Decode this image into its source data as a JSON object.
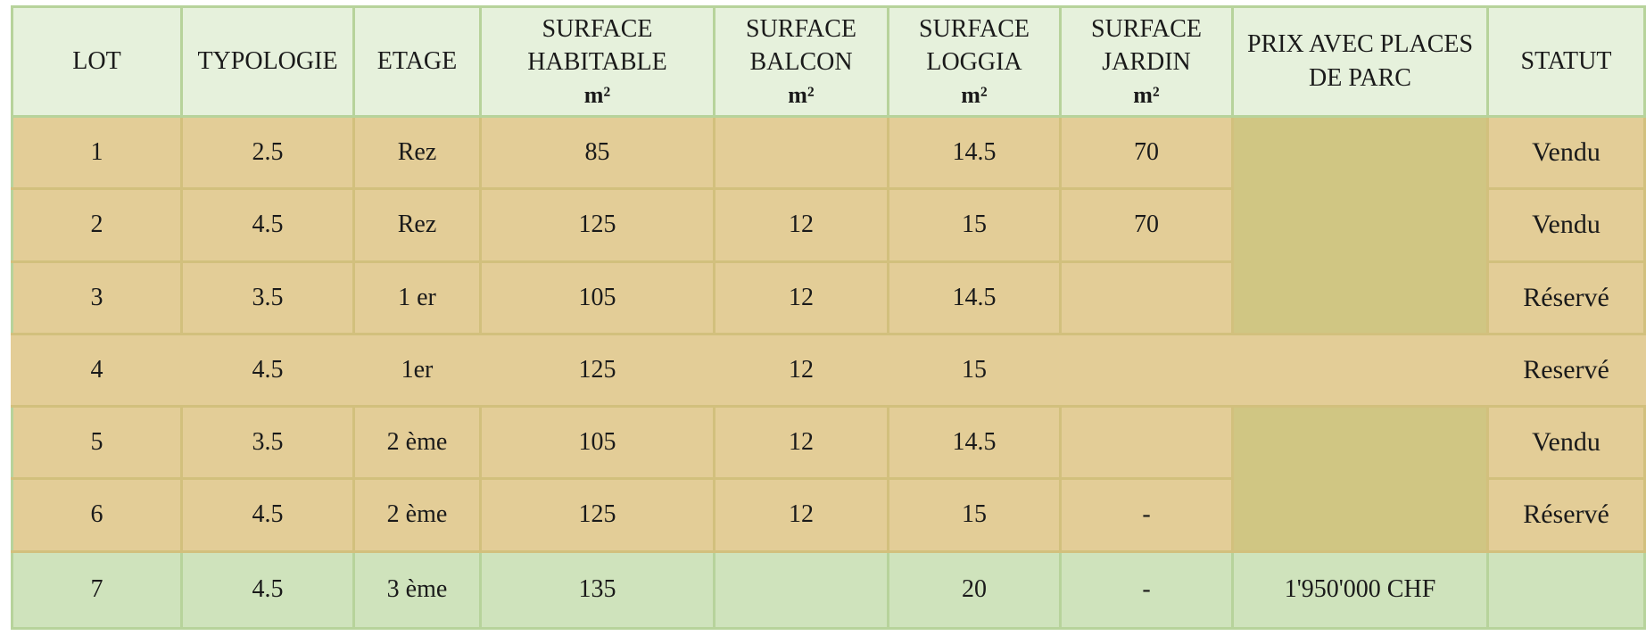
{
  "table": {
    "headers": [
      {
        "label": "LOT",
        "unit": ""
      },
      {
        "label": "TYPOLOGIE",
        "unit": ""
      },
      {
        "label": "ETAGE",
        "unit": ""
      },
      {
        "label": "SURFACE HABITABLE",
        "unit": "m²"
      },
      {
        "label": "SURFACE BALCON",
        "unit": "m²"
      },
      {
        "label": "SURFACE LOGGIA",
        "unit": "m²"
      },
      {
        "label": "SURFACE JARDIN",
        "unit": "m²"
      },
      {
        "label": "PRIX AVEC PLACES DE PARC",
        "unit": ""
      },
      {
        "label": "STATUT",
        "unit": ""
      }
    ],
    "rows": [
      {
        "lot": "1",
        "typologie": "2.5",
        "etage": "Rez",
        "habitable": "85",
        "balcon": "",
        "loggia": "14.5",
        "jardin": "70",
        "prix": "",
        "statut": "Vendu"
      },
      {
        "lot": "2",
        "typologie": "4.5",
        "etage": "Rez",
        "habitable": "125",
        "balcon": "12",
        "loggia": "15",
        "jardin": "70",
        "prix": "",
        "statut": "Vendu"
      },
      {
        "lot": "3",
        "typologie": "3.5",
        "etage": "1 er",
        "habitable": "105",
        "balcon": "12",
        "loggia": "14.5",
        "jardin": "",
        "prix": "",
        "statut": "Réservé"
      },
      {
        "lot": "4",
        "typologie": "4.5",
        "etage": "1er",
        "habitable": "125",
        "balcon": "12",
        "loggia": "15",
        "jardin": "",
        "prix": "",
        "statut": "Reservé"
      },
      {
        "lot": "5",
        "typologie": "3.5",
        "etage": "2 ème",
        "habitable": "105",
        "balcon": "12",
        "loggia": "14.5",
        "jardin": "",
        "prix": "",
        "statut": "Vendu"
      },
      {
        "lot": "6",
        "typologie": "4.5",
        "etage": "2 ème",
        "habitable": "125",
        "balcon": "12",
        "loggia": "15",
        "jardin": "-",
        "prix": "",
        "statut": "Réservé"
      },
      {
        "lot": "7",
        "typologie": "4.5",
        "etage": "3 ème",
        "habitable": "135",
        "balcon": "",
        "loggia": "20",
        "jardin": "-",
        "prix": "1'950'000 CHF",
        "statut": ""
      }
    ]
  },
  "colors": {
    "header_bg": "#e6f1dc",
    "row_bg": "#e3cd97",
    "price_block_bg": "#d0c683",
    "last_row_bg": "#cfe3bc",
    "border": "#b7d39b"
  }
}
